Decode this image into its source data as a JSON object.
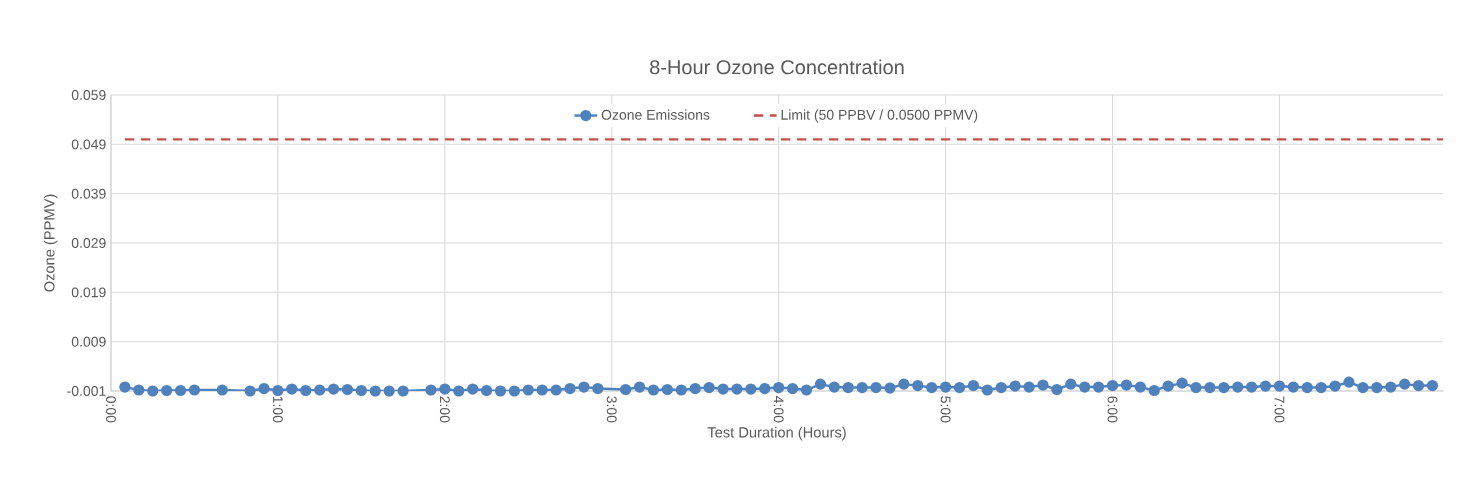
{
  "chart_data": {
    "type": "line",
    "title": "8-Hour Ozone Concentration",
    "xlabel": "Test Duration (Hours)",
    "ylabel": "Ozone (PPMV)",
    "xlim": [
      0,
      7.98
    ],
    "ylim": [
      -0.001,
      0.059
    ],
    "xticks": [
      {
        "value": 0,
        "label": "0:00"
      },
      {
        "value": 1,
        "label": "1:00"
      },
      {
        "value": 2,
        "label": "2:00"
      },
      {
        "value": 3,
        "label": "3:00"
      },
      {
        "value": 4,
        "label": "4:00"
      },
      {
        "value": 5,
        "label": "5:00"
      },
      {
        "value": 6,
        "label": "6:00"
      },
      {
        "value": 7,
        "label": "7:00"
      }
    ],
    "yticks": [
      -0.001,
      0.009,
      0.019,
      0.029,
      0.039,
      0.049,
      0.059
    ],
    "grid": true,
    "legend": "top",
    "series": [
      {
        "name": "Ozone Emissions",
        "color": "#4f81bd",
        "marker": "circle",
        "line_style": "solid",
        "x": [
          0.0833,
          0.1667,
          0.25,
          0.3333,
          0.4167,
          0.5,
          0.6667,
          0.8333,
          0.9167,
          1.0,
          1.0833,
          1.1667,
          1.25,
          1.3333,
          1.4167,
          1.5,
          1.5833,
          1.6667,
          1.75,
          1.9167,
          2.0,
          2.0833,
          2.1667,
          2.25,
          2.3333,
          2.4167,
          2.5,
          2.5833,
          2.6667,
          2.75,
          2.8333,
          2.9167,
          3.0833,
          3.1667,
          3.25,
          3.3333,
          3.4167,
          3.5,
          3.5833,
          3.6667,
          3.75,
          3.8333,
          3.9167,
          4.0,
          4.0833,
          4.1667,
          4.25,
          4.3333,
          4.4167,
          4.5,
          4.5833,
          4.6667,
          4.75,
          4.8333,
          4.9167,
          5.0,
          5.0833,
          5.1667,
          5.25,
          5.3333,
          5.4167,
          5.5,
          5.5833,
          5.6667,
          5.75,
          5.8333,
          5.9167,
          6.0,
          6.0833,
          6.1667,
          6.25,
          6.3333,
          6.4167,
          6.5,
          6.5833,
          6.6667,
          6.75,
          6.8333,
          6.9167,
          7.0,
          7.0833,
          7.1667,
          7.25,
          7.3333,
          7.4167,
          7.5,
          7.5833,
          7.6667,
          7.75,
          7.8333,
          7.9167
        ],
        "values": [
          -0.0002,
          -0.0008,
          -0.001,
          -0.0009,
          -0.0009,
          -0.0008,
          -0.0008,
          -0.001,
          -0.0005,
          -0.0009,
          -0.0006,
          -0.0009,
          -0.0008,
          -0.0006,
          -0.0007,
          -0.0009,
          -0.001,
          -0.001,
          -0.001,
          -0.0008,
          -0.0006,
          -0.001,
          -0.0006,
          -0.0009,
          -0.001,
          -0.001,
          -0.0008,
          -0.0008,
          -0.0008,
          -0.0005,
          -0.0002,
          -0.0005,
          -0.0007,
          -0.0002,
          -0.0008,
          -0.0007,
          -0.0008,
          -0.0005,
          -0.0003,
          -0.0006,
          -0.0006,
          -0.0006,
          -0.0005,
          -0.0003,
          -0.0005,
          -0.0008,
          0.0004,
          -0.0002,
          -0.0003,
          -0.0003,
          -0.0003,
          -0.0004,
          0.0004,
          0.0001,
          -0.0003,
          -0.0002,
          -0.0003,
          0.0001,
          -0.0008,
          -0.0003,
          0,
          -0.0002,
          0.0002,
          -0.0007,
          0.0004,
          -0.0002,
          -0.0002,
          0.0001,
          0.0002,
          -0.0002,
          -0.0009,
          0,
          0.0006,
          -0.0003,
          -0.0003,
          -0.0003,
          -0.0002,
          -0.0002,
          0,
          0,
          -0.0002,
          -0.0003,
          -0.0003,
          0,
          0.0008,
          -0.0003,
          -0.0003,
          -0.0002,
          0.0004,
          0.0001,
          0.0001
        ]
      },
      {
        "name": "Limit (50 PPBV / 0.0500 PPMV)",
        "color": "#c0504d",
        "marker": "none",
        "line_style": "dashed",
        "x": [
          0.0833,
          7.98
        ],
        "values": [
          0.05,
          0.05
        ]
      }
    ]
  }
}
